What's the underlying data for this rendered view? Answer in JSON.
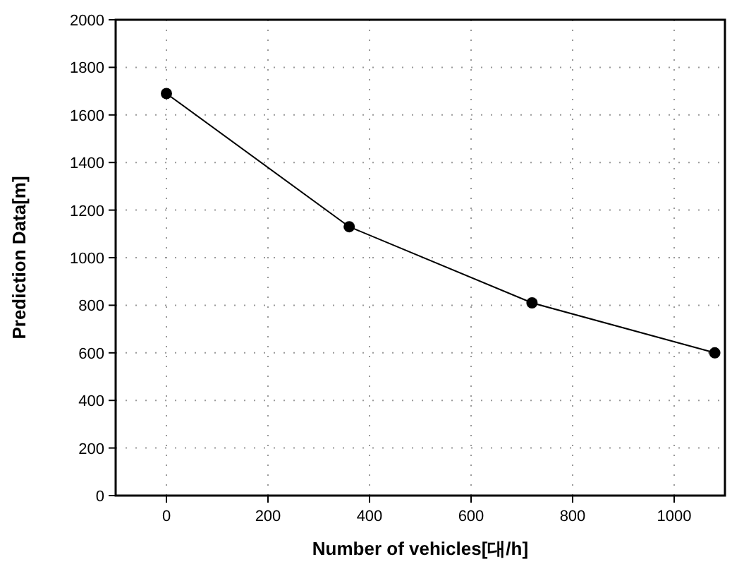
{
  "chart_data": {
    "type": "line",
    "xlabel": "Number of vehicles[대/h]",
    "ylabel": "Prediction Data[m]",
    "x": [
      0,
      360,
      720,
      1080
    ],
    "series": [
      {
        "color": "#000000",
        "values": [
          1690,
          1130,
          810,
          600
        ]
      }
    ],
    "xlim": [
      -100,
      1100
    ],
    "xticks": [
      0,
      200,
      400,
      600,
      800,
      1000
    ],
    "ylim": [
      0,
      2000
    ],
    "yticks": [
      0,
      200,
      400,
      600,
      800,
      1000,
      1200,
      1400,
      1600,
      1800,
      2000
    ],
    "grid": true,
    "marker": "circle",
    "line_style": "solid"
  }
}
